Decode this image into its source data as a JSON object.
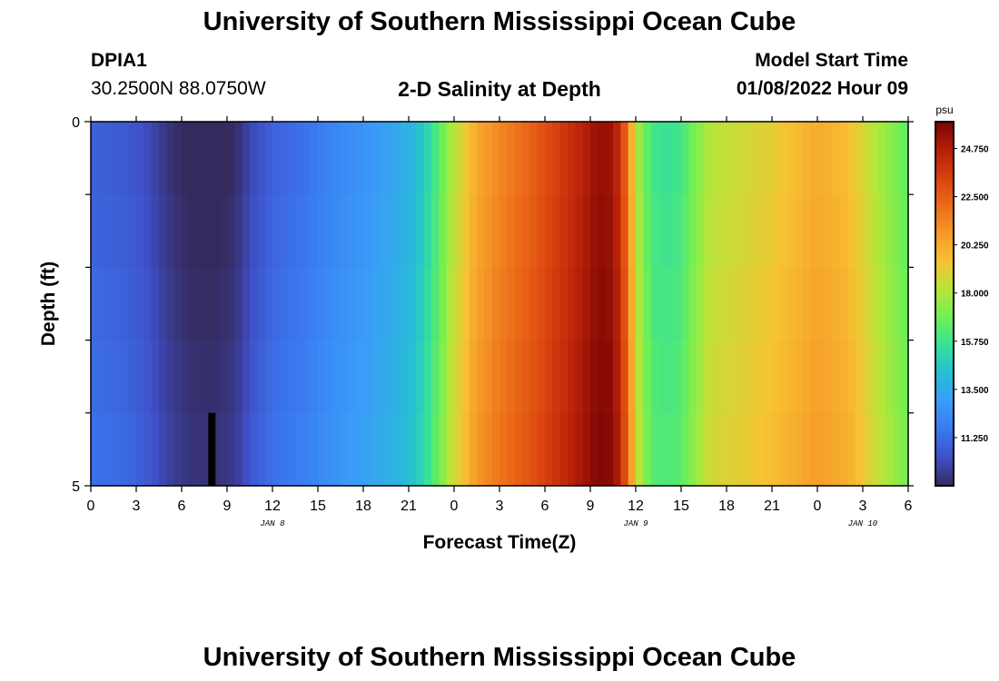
{
  "header": {
    "title": "University of Southern Mississippi Ocean Cube",
    "station_id": "DPIA1",
    "station_coords": "30.2500N  88.0750W",
    "plot_title": "2-D Salinity at Depth",
    "model_start_label": "Model Start Time",
    "model_start_value": "01/08/2022 Hour 09"
  },
  "footer": {
    "title": "University of Southern Mississippi Ocean Cube"
  },
  "chart_data": {
    "type": "heatmap",
    "title": "2-D Salinity at Depth",
    "xlabel": "Forecast Time(Z)",
    "ylabel": "Depth (ft)",
    "x_range_hours": [
      0,
      54
    ],
    "x_tick_hours": [
      0,
      3,
      6,
      9,
      12,
      15,
      18,
      21,
      24,
      27,
      30,
      33,
      36,
      39,
      42,
      45,
      48,
      51,
      54
    ],
    "x_tick_labels": [
      "0",
      "3",
      "6",
      "9",
      "12",
      "15",
      "18",
      "21",
      "0",
      "3",
      "6",
      "9",
      "12",
      "15",
      "18",
      "21",
      "0",
      "3",
      "6"
    ],
    "date_labels": [
      {
        "hour": 12,
        "label": "JAN 8"
      },
      {
        "hour": 36,
        "label": "JAN 9"
      },
      {
        "hour": 51,
        "label": "JAN 10"
      }
    ],
    "y_range_ft": [
      0,
      5
    ],
    "y_tick_labels": [
      {
        "value": 0,
        "label": "0"
      },
      {
        "value": 5,
        "label": "5"
      }
    ],
    "y_minor_ticks_ft": [
      1,
      2,
      3,
      4
    ],
    "depth_levels": 5,
    "time_step_hours": 0.5,
    "salinity_keyframes": [
      [
        0,
        10.9
      ],
      [
        2,
        10.7
      ],
      [
        3.5,
        10.3
      ],
      [
        4.5,
        9.7
      ],
      [
        5.5,
        9.2
      ],
      [
        6.5,
        8.9
      ],
      [
        8,
        8.8
      ],
      [
        9.5,
        9.1
      ],
      [
        10.5,
        10.0
      ],
      [
        12,
        10.9
      ],
      [
        14,
        11.4
      ],
      [
        16,
        12.1
      ],
      [
        18,
        12.6
      ],
      [
        20,
        13.3
      ],
      [
        21.5,
        14.1
      ],
      [
        22.3,
        15.2
      ],
      [
        23,
        16.3
      ],
      [
        23.6,
        17.6
      ],
      [
        24.5,
        18.8
      ],
      [
        25.5,
        20.3
      ],
      [
        27,
        21.3
      ],
      [
        29,
        22.3
      ],
      [
        31,
        23.6
      ],
      [
        32.5,
        24.6
      ],
      [
        33.5,
        25.4
      ],
      [
        34.5,
        25.2
      ],
      [
        35,
        23.8
      ],
      [
        35.5,
        21.6
      ],
      [
        36,
        18.3
      ],
      [
        37,
        15.9
      ],
      [
        38,
        15.6
      ],
      [
        39,
        15.9
      ],
      [
        40,
        17.2
      ],
      [
        41,
        18.2
      ],
      [
        43,
        18.6
      ],
      [
        45,
        19.1
      ],
      [
        47,
        19.8
      ],
      [
        48,
        20.2
      ],
      [
        50,
        19.6
      ],
      [
        51.5,
        18.4
      ],
      [
        53,
        17.2
      ],
      [
        54,
        16.4
      ]
    ],
    "colorbar": {
      "unit": "psu",
      "min": 9.0,
      "max": 26.0,
      "tick_values": [
        11.25,
        13.5,
        15.75,
        18.0,
        20.25,
        22.5,
        24.75
      ],
      "tick_labels": [
        "11.250",
        "13.500",
        "15.750",
        "18.000",
        "20.250",
        "22.500",
        "24.750"
      ],
      "stops": [
        "#352a5e",
        "#3f4fc7",
        "#3a78f0",
        "#3a9cf8",
        "#27bdd6",
        "#36e09a",
        "#6ef054",
        "#b6e63a",
        "#f7c233",
        "#f69a28",
        "#ec6b18",
        "#d8410f",
        "#b51f08",
        "#7a0404"
      ]
    },
    "marker": {
      "hour": 8,
      "depth_from_ft": 4.0,
      "depth_to_ft": 5.0,
      "color": "#000000"
    }
  }
}
